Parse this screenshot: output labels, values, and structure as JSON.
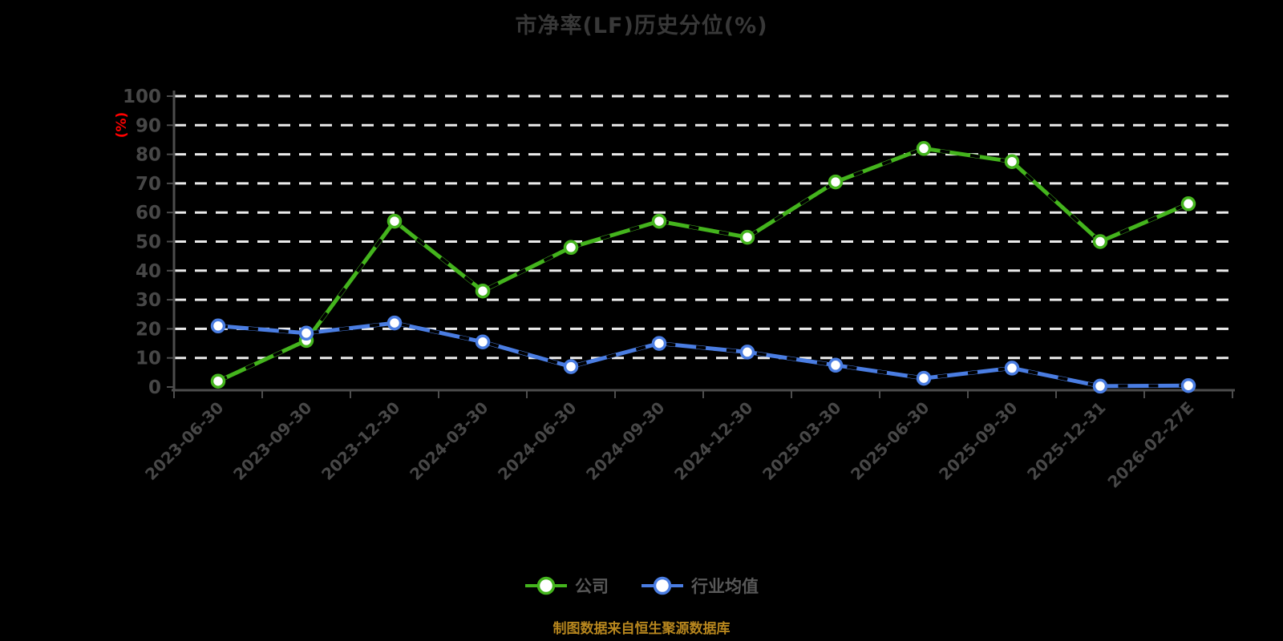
{
  "title": "市净率(LF)历史分位(%)",
  "source_note": "制图数据来自恒生聚源数据库",
  "chart_data": {
    "type": "line",
    "title": "市净率(LF)历史分位(%)",
    "categories": [
      "2023-06-30",
      "2023-09-30",
      "2023-12-30",
      "2024-03-30",
      "2024-06-30",
      "2024-09-30",
      "2024-12-30",
      "2025-03-30",
      "2025-06-30",
      "2025-09-30",
      "2025-12-31",
      "2026-02-27E"
    ],
    "series": [
      {
        "key": "company",
        "name": "公司",
        "color": "#44b41d",
        "marker": "circle",
        "values": [
          2,
          16,
          57,
          33,
          48,
          57,
          51.5,
          70.5,
          82,
          77.5,
          50,
          63
        ]
      },
      {
        "key": "industry-average",
        "name": "行业均值",
        "color": "#4a7de2",
        "marker": "circle",
        "values": [
          21,
          18.5,
          22,
          15.5,
          7,
          15,
          12,
          7.5,
          3,
          6.5,
          0.3,
          0.5
        ]
      }
    ],
    "xlabel": "",
    "ylabel": "(%)",
    "ylabel_color": "#ff0000",
    "ylim": [
      0,
      100
    ],
    "ytick_step": 10,
    "grid": "dashed-horizontal",
    "legend_position": "bottom",
    "background": "#000000"
  }
}
